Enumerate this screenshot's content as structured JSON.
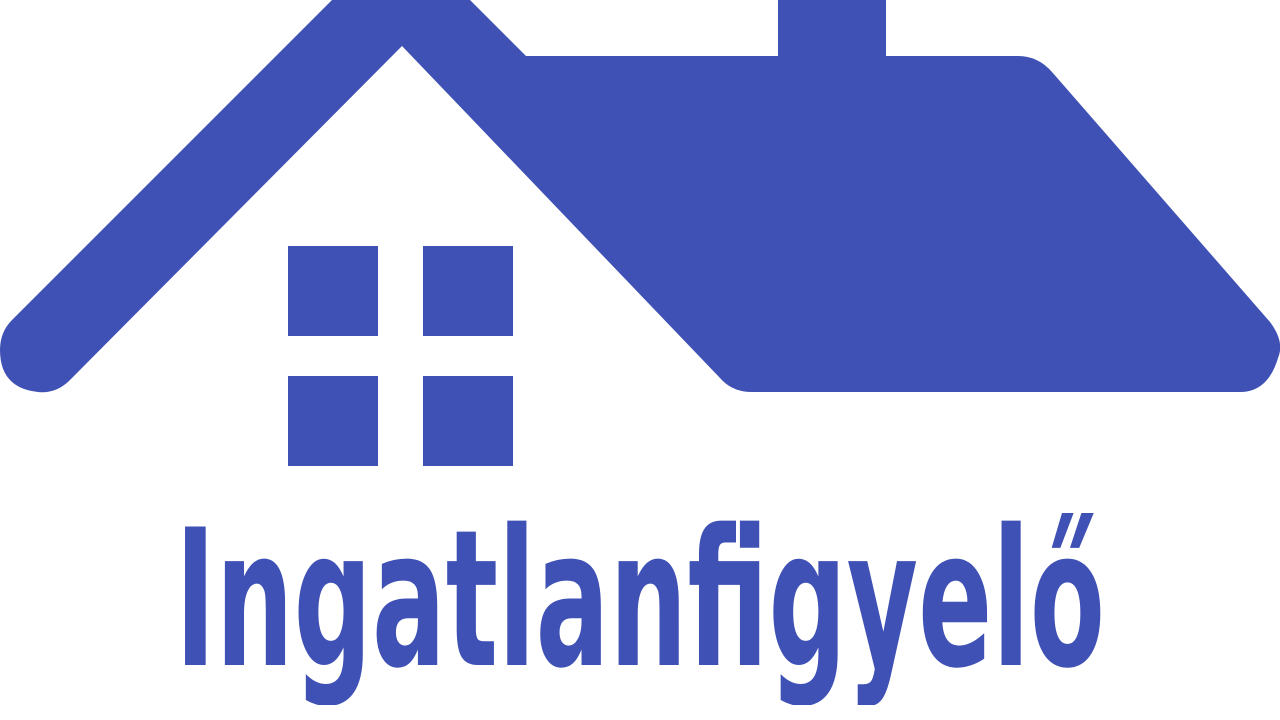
{
  "brand": {
    "name": "Ingatlanfigyelő",
    "color": "#3f51b5"
  },
  "logo": {
    "icon": "house-roof-icon"
  }
}
